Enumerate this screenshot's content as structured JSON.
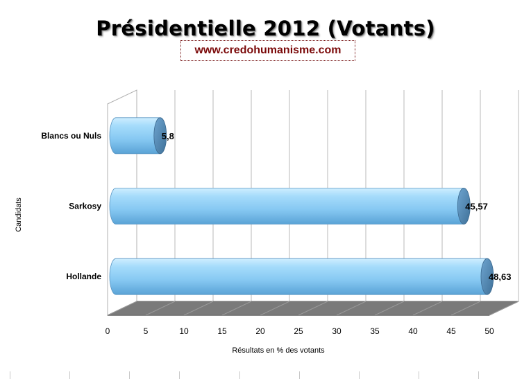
{
  "chart_data": {
    "type": "bar",
    "orientation": "horizontal",
    "title": "Présidentielle 2012 (Votants)",
    "subtitle": "www.credohumanisme.com",
    "xlabel": "Résultats en % des votants",
    "ylabel": "Candidats",
    "categories": [
      "Blancs ou Nuls",
      "Sarkosy",
      "Hollande"
    ],
    "values": [
      5.8,
      45.57,
      48.63
    ],
    "value_labels": [
      "5,8",
      "45,57",
      "48,63"
    ],
    "xlim": [
      0,
      50
    ],
    "xticks": [
      0,
      5,
      10,
      15,
      20,
      25,
      30,
      35,
      40,
      45,
      50
    ],
    "grid": true,
    "legend": "none",
    "style": "3d-cylinder",
    "colors": {
      "bar_body": "#8ed0f6",
      "bar_cap": "#4f87b4",
      "floor": "#7a7a7a",
      "gridline": "#b8b8b8"
    }
  }
}
